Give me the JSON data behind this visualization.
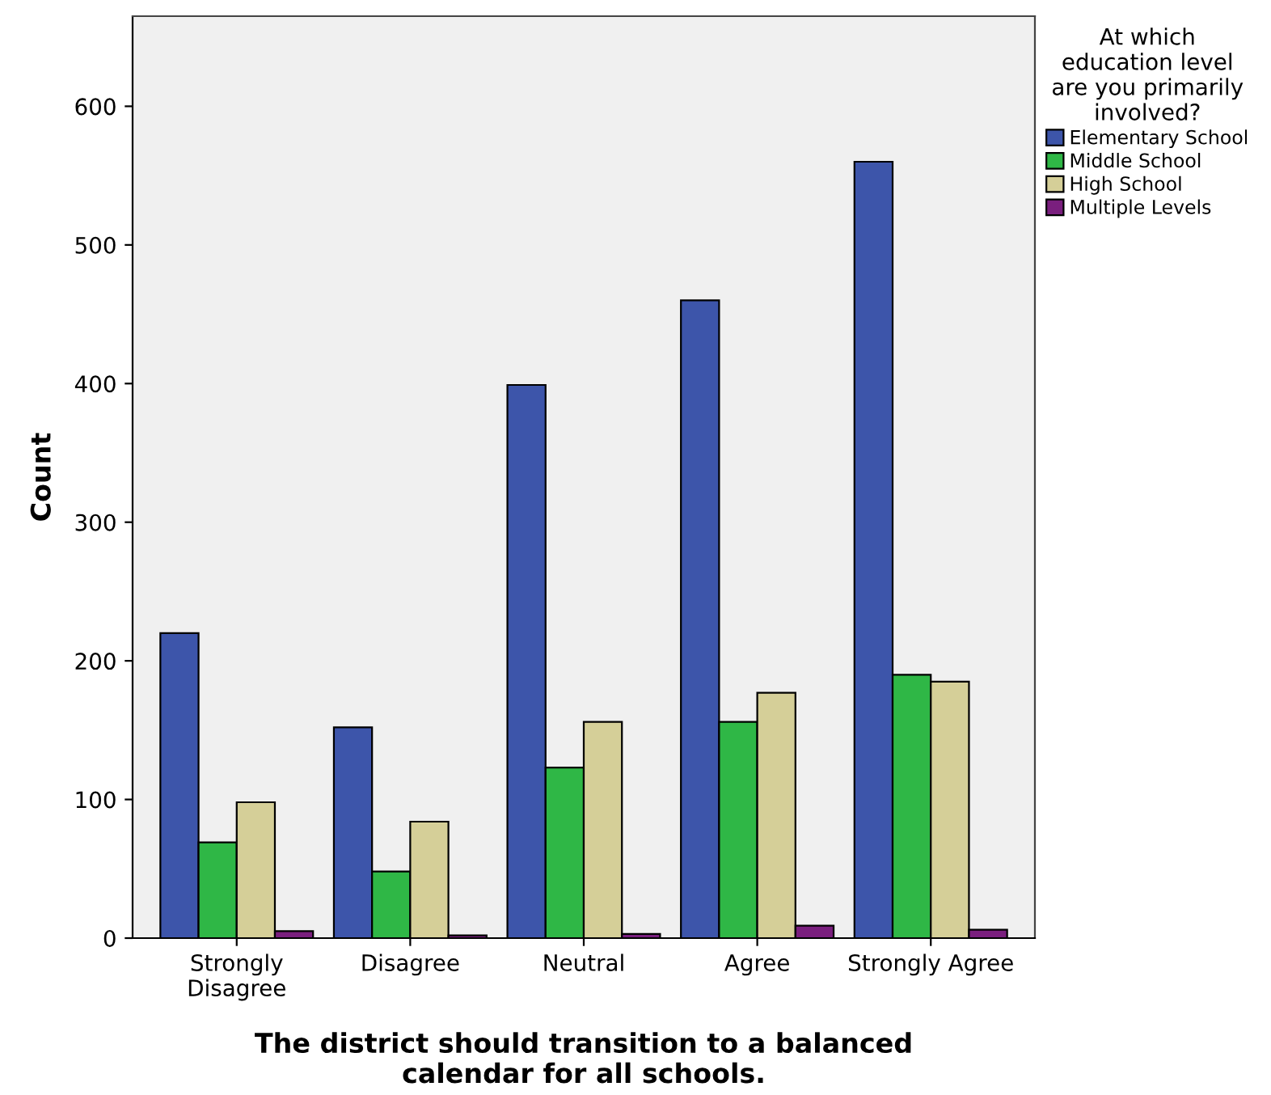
{
  "chart_data": {
    "type": "bar",
    "xlabel": "The district should transition to a balanced\ncalendar for all schools.",
    "ylabel": "Count",
    "legend_title": "At which\neducation level\nare you primarily\ninvolved?",
    "legend": "top right",
    "grid": false,
    "categories": [
      "Strongly\nDisagree",
      "Disagree",
      "Neutral",
      "Agree",
      "Strongly Agree"
    ],
    "ylim": [
      0,
      665
    ],
    "yticks": [
      0,
      100,
      200,
      300,
      400,
      500,
      600
    ],
    "series": [
      {
        "name": "Elementary School",
        "color": "#3d55aa",
        "values": [
          220,
          152,
          399,
          460,
          560
        ]
      },
      {
        "name": "Middle School",
        "color": "#2fb746",
        "values": [
          69,
          48,
          123,
          156,
          190
        ]
      },
      {
        "name": "High School",
        "color": "#d5cf98",
        "values": [
          98,
          84,
          156,
          177,
          185
        ]
      },
      {
        "name": "Multiple Levels",
        "color": "#7a1f7e",
        "values": [
          5,
          2,
          3,
          9,
          6
        ]
      }
    ]
  }
}
